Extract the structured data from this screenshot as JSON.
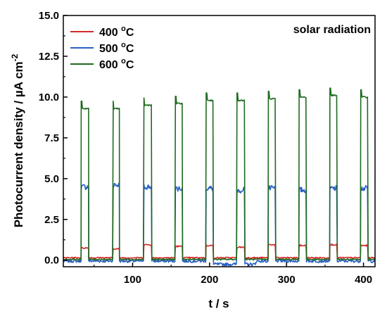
{
  "chart_data": {
    "type": "line",
    "xlabel": "t / s",
    "ylabel_main": "Photocurrent density / ",
    "ylabel_mu": "µ",
    "ylabel_unit": "A cm",
    "ylabel_exp": "-2",
    "annotation": "solar radiation",
    "xlim": [
      10,
      415
    ],
    "ylim": [
      -0.4,
      15.0
    ],
    "x_ticks": [
      100,
      200,
      300,
      400
    ],
    "y_ticks": [
      0.0,
      2.5,
      5.0,
      7.5,
      10.0,
      12.5,
      15.0
    ],
    "y_tick_labels": [
      "0.0",
      "2.5",
      "5.0",
      "7.5",
      "10.0",
      "12.5",
      "15.0"
    ],
    "grid": false,
    "legend_position": "top-left",
    "light_on_intervals": [
      [
        33,
        43
      ],
      [
        74,
        83
      ],
      [
        114,
        125
      ],
      [
        155,
        165
      ],
      [
        195,
        205
      ],
      [
        235,
        246
      ],
      [
        276,
        286
      ],
      [
        316,
        326
      ],
      [
        356,
        366
      ],
      [
        396,
        406
      ]
    ],
    "series": [
      {
        "name": "400",
        "unit_sup": "o",
        "unit": "C",
        "color": "#d42a2a",
        "baseline": 0.15,
        "on_values": [
          0.75,
          0.7,
          0.95,
          0.85,
          0.9,
          0.8,
          0.95,
          0.9,
          0.95,
          0.9
        ]
      },
      {
        "name": "500",
        "unit_sup": "o",
        "unit": "C",
        "color": "#2a5fc4",
        "baseline": -0.05,
        "on_values": [
          4.5,
          4.6,
          4.5,
          4.4,
          4.4,
          4.3,
          4.4,
          4.3,
          4.4,
          4.4
        ]
      },
      {
        "name": "600",
        "unit_sup": "o",
        "unit": "C",
        "color": "#1f6b1f",
        "baseline": 0.05,
        "on_values": [
          9.3,
          9.3,
          9.5,
          9.6,
          9.8,
          9.8,
          9.9,
          10.0,
          10.1,
          10.0
        ]
      }
    ]
  }
}
